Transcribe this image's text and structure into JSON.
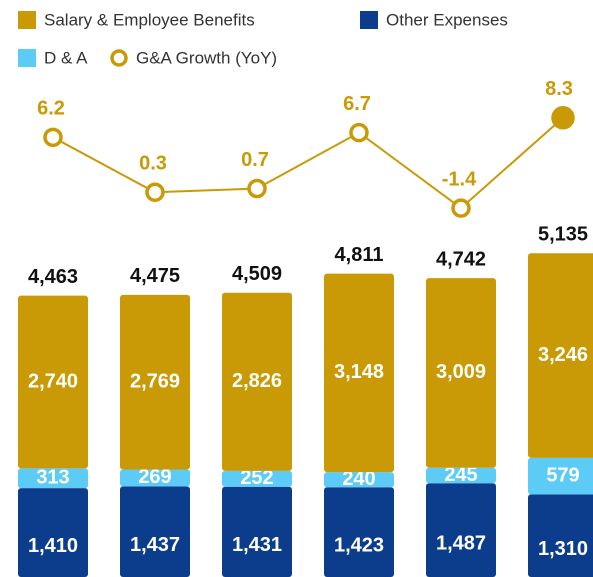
{
  "chart_data": {
    "type": "stacked_bar_line",
    "categories": [
      null,
      null,
      null,
      null,
      null,
      null
    ],
    "series": [
      {
        "name": "Other Expenses",
        "color": "#0b3d8c",
        "values": [
          1410,
          1437,
          1431,
          1423,
          1487,
          1310
        ],
        "value_labels": [
          "1,410",
          "1,437",
          "1,431",
          "1,423",
          "1,487",
          "1,310"
        ]
      },
      {
        "name": "D & A",
        "color": "#5ccbf5",
        "values": [
          313,
          269,
          252,
          240,
          245,
          579
        ]
      },
      {
        "name": "Salary & Employee Benefits",
        "color": "#c99a06",
        "values": [
          2740,
          2769,
          2826,
          3148,
          3009,
          3246
        ],
        "value_labels": [
          "2,740",
          "2,769",
          "2,826",
          "3,148",
          "3,009",
          "3,246"
        ]
      },
      {
        "name": "G&A Growth (YoY)",
        "color": "#c99a06",
        "type": "line",
        "axis": "y2",
        "values": [
          6.2,
          0.3,
          0.7,
          6.7,
          -1.4,
          8.3
        ]
      }
    ],
    "totals": {
      "values": [
        4463,
        4475,
        4509,
        4811,
        4742,
        5135
      ],
      "value_labels": [
        "4,463",
        "4,475",
        "4,509",
        "4,811",
        "4,742",
        "5,135"
      ]
    },
    "ylim": [
      0,
      8200
    ],
    "y2lim": [
      -41,
      14.5
    ]
  }
}
